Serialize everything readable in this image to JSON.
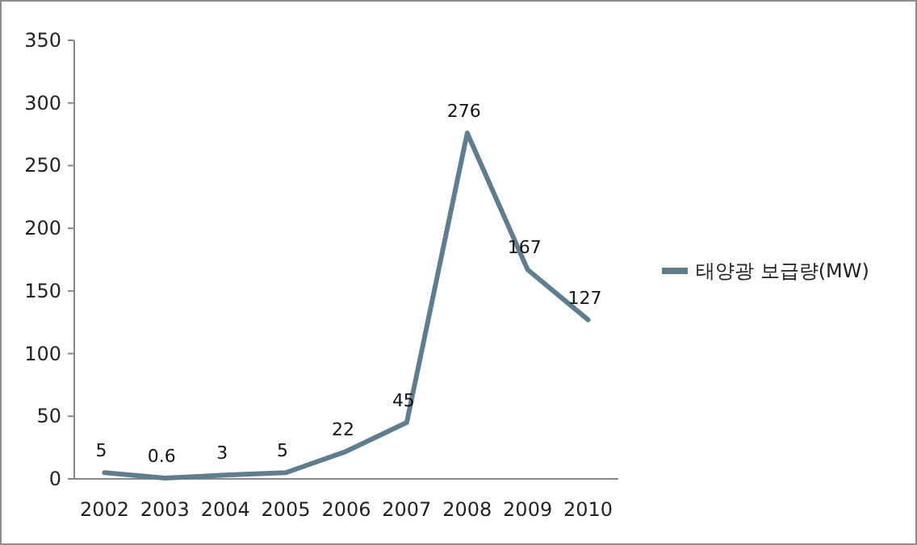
{
  "chart_data": {
    "type": "line",
    "categories": [
      "2002",
      "2003",
      "2004",
      "2005",
      "2006",
      "2007",
      "2008",
      "2009",
      "2010"
    ],
    "series": [
      {
        "name": "태양광 보급량(MW)",
        "color": "#5f7d8f",
        "values": [
          5,
          0.6,
          3,
          5,
          22,
          45,
          276,
          167,
          127
        ]
      }
    ],
    "ylim": [
      0,
      350
    ],
    "yticks": [
      0,
      50,
      100,
      150,
      200,
      250,
      300,
      350
    ],
    "data_labels": true,
    "legend": "right",
    "grid": false,
    "marker": "none",
    "line_style": "solid"
  }
}
